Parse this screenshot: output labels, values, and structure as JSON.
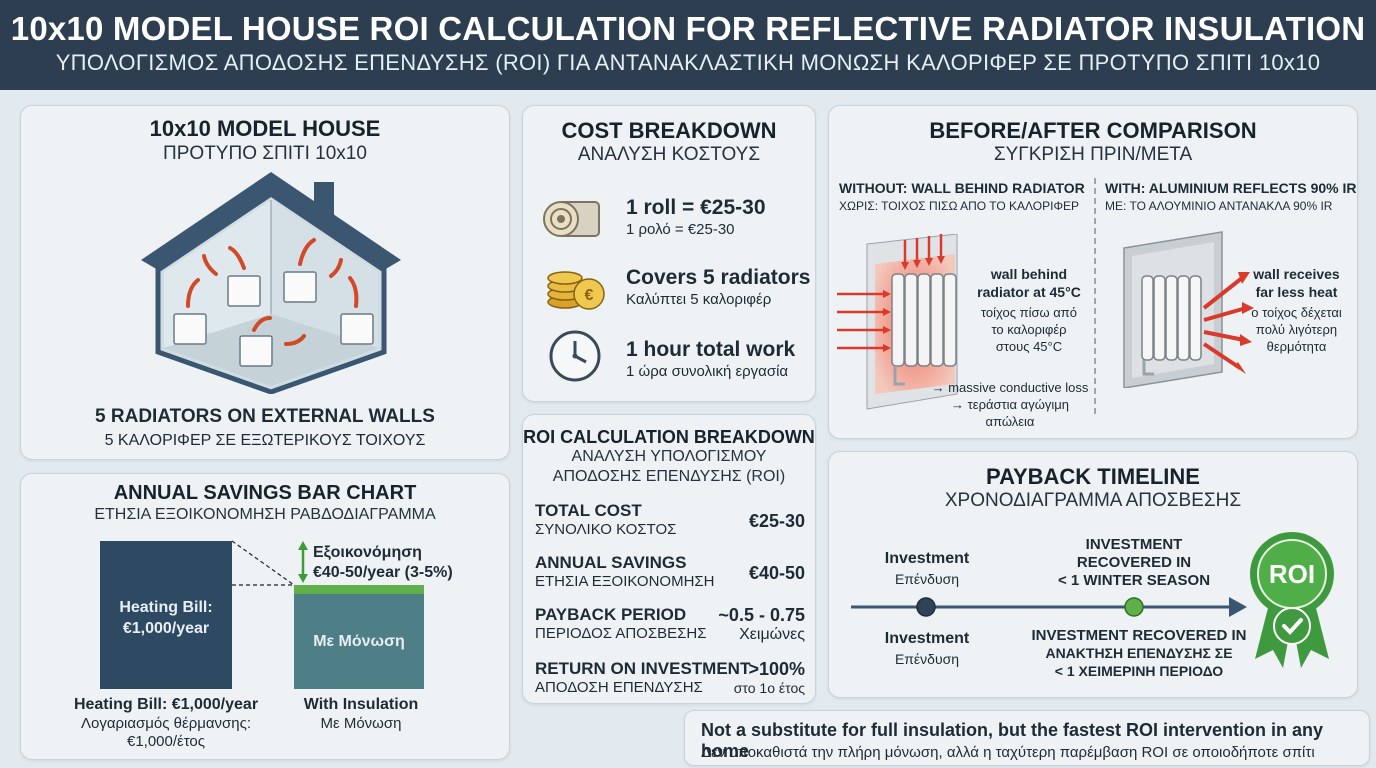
{
  "header": {
    "title": "10x10 MODEL HOUSE ROI CALCULATION FOR REFLECTIVE RADIATOR INSULATION",
    "subtitle": "ΥΠΟΛΟΓΙΣΜΟΣ ΑΠΟΔΟΣΗΣ ΕΠΕΝΔΥΣΗΣ (ROI) ΓΙΑ ΑΝΤΑΝΑΚΛΑΣΤΙΚΗ ΜΟΝΩΣΗ ΚΑΛΟΡΙΦΕΡ ΣΕ ΠΡΟΤΥΠΟ ΣΠΙΤΙ 10x10"
  },
  "house": {
    "title": "10x10 MODEL HOUSE",
    "subtitle": "ΠΡΟΤΥΠΟ ΣΠΙΤΙ 10x10",
    "caption": "5 RADIATORS ON EXTERNAL WALLS",
    "caption_gr": "5 ΚΑΛΟΡΙΦΕΡ ΣΕ ΕΞΩΤΕΡΙΚΟΥΣ ΤΟΙΧΟΥΣ"
  },
  "cost": {
    "title": "COST BREAKDOWN",
    "subtitle": "ΑΝΑΛΥΣΗ ΚΟΣΤΟΥΣ",
    "items": [
      {
        "icon": "insulation-roll-icon",
        "label": "1 roll = €25-30",
        "label_gr": "1 ρολό = €25-30"
      },
      {
        "icon": "coins-icon",
        "label": "Covers 5 radiators",
        "label_gr": "Καλύπτει 5 καλοριφέρ"
      },
      {
        "icon": "clock-icon",
        "label": "1 hour total work",
        "label_gr": "1 ώρα συνολική εργασία"
      }
    ]
  },
  "roi": {
    "title": "ROI CALCULATION BREAKDOWN",
    "subtitle_1": "ΑΝΑΛΥΣΗ ΥΠΟΛΟΓΙΣΜΟΥ",
    "subtitle_2": "ΑΠΟΔΟΣΗΣ ΕΠΕΝΔΥΣΗΣ (ROI)",
    "rows": [
      {
        "label": "TOTAL COST",
        "label_gr": "ΣΥΝΟΛΙΚΟ ΚΟΣΤΟΣ",
        "value": "€25-30",
        "value_gr": ""
      },
      {
        "label": "ANNUAL SAVINGS",
        "label_gr": "ΕΤΗΣΙΑ ΕΞΟΙΚΟΝΟΜΗΣΗ",
        "value": "€40-50",
        "value_gr": ""
      },
      {
        "label": "PAYBACK PERIOD",
        "label_gr": "ΠΕΡΙΟΔΟΣ ΑΠΟΣΒΕΣΗΣ",
        "value": "~0.5 - 0.75",
        "value_gr": "Χειμώνες"
      },
      {
        "label": "RETURN ON INVESTMENT",
        "label_gr": "ΑΠΟΔΟΣΗ ΕΠΕΝΔΥΣΗΣ",
        "value": ">100%",
        "value_gr": "στο 1ο έτος"
      }
    ]
  },
  "compare": {
    "title": "BEFORE/AFTER COMPARISON",
    "subtitle": "ΣΥΓΚΡΙΣΗ ΠΡΙΝ/ΜΕΤΑ",
    "left_head": "WITHOUT: WALL BEHIND RADIATOR",
    "left_head_gr": "ΧΩΡΙΣ: ΤΟΙΧΟΣ ΠΙΣΩ ΑΠΟ ΤΟ ΚΑΛΟΡΙΦΕΡ",
    "left_note_1": "wall behind",
    "left_note_2": "radiator at 45°C",
    "left_note_gr_1": "τοίχος πίσω από",
    "left_note_gr_2": "το καλοριφέρ",
    "left_note_gr_3": "στους 45°C",
    "left_loss": "→ massive conductive loss",
    "left_loss_gr_1": "→ τεράστια αγώγιμη",
    "left_loss_gr_2": "απώλεια",
    "right_head": "WITH: ALUMINIUM REFLECTS 90% IR",
    "right_head_gr": "ΜΕ: ΤΟ ΑΛΟΥΜΙΝΙΟ ΑΝΤΑΝΑΚΛΑ 90% IR",
    "right_note_1": "wall receives",
    "right_note_2": "far less heat",
    "right_note_gr_1": "ο τοίχος δέχεται",
    "right_note_gr_2": "πολύ λιγότερη",
    "right_note_gr_3": "θερμότητα",
    "colors": {
      "heat": "#d93a2b",
      "wall_hot": "#f4a08c",
      "foil": "#c9ced3"
    }
  },
  "savings": {
    "title": "ANNUAL SAVINGS BAR CHART",
    "subtitle": "ΕΤΗΣΙΑ ΕΞΟΙΚΟΝΟΜΗΣΗ ΡΑΒΔΟΔΙΑΓΡΑΜΜΑ",
    "bar1_inner_1": "Heating Bill:",
    "bar1_inner_2": "€1,000/year",
    "bar2_inner": "Με Μόνωση",
    "saving_label_1": "Εξοικονόμηση",
    "saving_label_2": "€40-50/year (3-5%)",
    "bar1_caption": "Heating Bill: €1,000/year",
    "bar1_caption_gr_1": "Λογαριασμός θέρμανσης:",
    "bar1_caption_gr_2": "€1,000/έτος",
    "bar2_caption": "With Insulation",
    "bar2_caption_gr": "Με Μόνωση",
    "colors": {
      "bill": "#2e4a63",
      "insulated": "#4e7e86",
      "saving": "#5fb04a"
    }
  },
  "payback": {
    "title": "PAYBACK TIMELINE",
    "subtitle": "ΧΡΟΝΟΔΙΑΓΡΑΜΜΑ ΑΠΟΣΒΕΣΗΣ",
    "start_label": "Investment",
    "start_label_gr": "Επένδυση",
    "start_label_below": "Investment",
    "start_label_below_gr": "Επένδυση",
    "mid_top_1": "INVESTMENT",
    "mid_top_2": "RECOVERED IN",
    "mid_top_3": "< 1 WINTER SEASON",
    "mid_bottom_1": "INVESTMENT RECOVERED IN",
    "mid_bottom_2": "ΑΝΑΚΤΗΣΗ ΕΠΕΝΔΥΣΗΣ ΣΕ",
    "mid_bottom_3": "< 1 ΧΕΙΜΕΡΙΝΗ ΠΕΡΙΟΔΟ",
    "badge": "ROI",
    "colors": {
      "badge": "#3f9a3f",
      "line": "#3b5670"
    }
  },
  "footer": {
    "en": "Not a substitute for full insulation, but the fastest ROI intervention in any home",
    "gr": "Δεν υποκαθιστά την πλήρη μόνωση, αλλά η ταχύτερη παρέμβαση ROI σε οποιοδήποτε σπίτι"
  }
}
